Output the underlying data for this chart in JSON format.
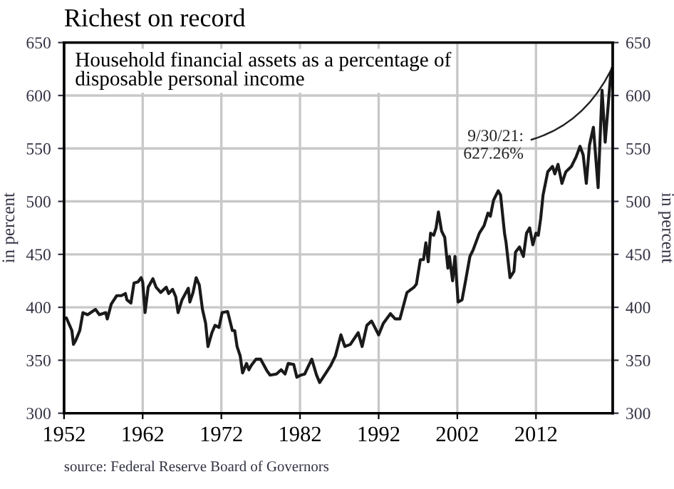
{
  "chart_data": {
    "type": "line",
    "title": "Richest on record",
    "subtitle": "Household financial assets as a percentage of disposable personal income",
    "ylabel": "in percent",
    "y2label": "in percent",
    "annotations": [
      {
        "text": "9/30/21:\n627.26%",
        "x": 2021.75,
        "y": 627.26
      },
      "source: Federal Reserve Board of Governors"
    ],
    "xlim": [
      1952,
      2021.75
    ],
    "xticks": [
      1952,
      1962,
      1972,
      1982,
      1992,
      2002,
      2012
    ],
    "ylim": [
      300,
      650
    ],
    "yticks": [
      300,
      350,
      400,
      450,
      500,
      550,
      600,
      650
    ],
    "y2lim": [
      300,
      650
    ],
    "y2ticks": [
      300,
      350,
      400,
      450,
      500,
      550,
      600,
      650
    ],
    "grid": true,
    "legend": false,
    "marker": "none",
    "line_style": "solid",
    "series": [
      {
        "color": "#1a1a1a",
        "x": [
          1952,
          1952.3,
          1953,
          1953.2,
          1953.5,
          1954,
          1954.4,
          1955,
          1956,
          1956.5,
          1957.3,
          1957.5,
          1958,
          1958.7,
          1959.3,
          1959.8,
          1960,
          1960.5,
          1960.9,
          1961.4,
          1961.8,
          1962,
          1962.3,
          1962.7,
          1963.3,
          1963.7,
          1964.3,
          1965,
          1965.3,
          1965.8,
          1966.2,
          1966.5,
          1967,
          1967.8,
          1968,
          1968.4,
          1968.8,
          1969.2,
          1969.6,
          1970,
          1970.3,
          1970.8,
          1971.2,
          1971.7,
          1972.1,
          1972.8,
          1973.4,
          1973.7,
          1974,
          1974.4,
          1974.7,
          1975.2,
          1975.5,
          1975.8,
          1976.4,
          1977,
          1977.8,
          1978.2,
          1979,
          1979.6,
          1980.1,
          1980.5,
          1981.2,
          1981.6,
          1982.1,
          1982.6,
          1983.1,
          1983.5,
          1984.1,
          1984.5,
          1985.3,
          1985.9,
          1986.5,
          1987.2,
          1987.7,
          1988.4,
          1989.4,
          1989.9,
          1990.5,
          1991.1,
          1992,
          1992.6,
          1993.5,
          1994.1,
          1994.7,
          1995.6,
          1996.5,
          1996.8,
          1997.3,
          1997.7,
          1998,
          1998.3,
          1998.6,
          1999,
          1999.3,
          1999.6,
          2000,
          2000.4,
          2000.8,
          2001,
          2001.4,
          2001.7,
          2002.1,
          2002.6,
          2003,
          2003.6,
          2004,
          2004.8,
          2005.4,
          2005.9,
          2006.2,
          2006.6,
          2007.2,
          2007.5,
          2008,
          2008.2,
          2008.7,
          2009.2,
          2009.4,
          2009.9,
          2010.4,
          2010.8,
          2011.2,
          2011.6,
          2012,
          2012.3,
          2012.6,
          2012.9,
          2013.5,
          2014.1,
          2014.4,
          2014.8,
          2015.3,
          2015.8,
          2016.5,
          2017.1,
          2017.6,
          2018,
          2018.4,
          2018.8,
          2019.3,
          2019.9,
          2020.4,
          2020.8,
          2021.5,
          2021.75
        ],
        "values": [
          390,
          390,
          378,
          365,
          369,
          378,
          395,
          393,
          398,
          393,
          395,
          389,
          403,
          411,
          411,
          413,
          407,
          404,
          423,
          424,
          428,
          424,
          395,
          419,
          427,
          419,
          414,
          419,
          413,
          417,
          410,
          395,
          407,
          418,
          405,
          414,
          428,
          421,
          398,
          385,
          363,
          376,
          383,
          381,
          395,
          396,
          378,
          378,
          363,
          354,
          338,
          347,
          341,
          345,
          351,
          351,
          340,
          336,
          337,
          341,
          337,
          347,
          346,
          334,
          336,
          337,
          345,
          351,
          336,
          329,
          338,
          345,
          354,
          374,
          363,
          365,
          376,
          363,
          383,
          387,
          374,
          385,
          394,
          389,
          389,
          414,
          419,
          422,
          445,
          445,
          461,
          443,
          470,
          468,
          475,
          490,
          472,
          466,
          437,
          448,
          425,
          448,
          405,
          407,
          423,
          448,
          454,
          470,
          477,
          489,
          486,
          501,
          510,
          506,
          470,
          461,
          428,
          434,
          452,
          457,
          448,
          470,
          475,
          459,
          470,
          468,
          484,
          506,
          528,
          533,
          526,
          535,
          517,
          528,
          533,
          542,
          552,
          544,
          517,
          553,
          570,
          513,
          605,
          556,
          620,
          627.26
        ]
      }
    ]
  }
}
